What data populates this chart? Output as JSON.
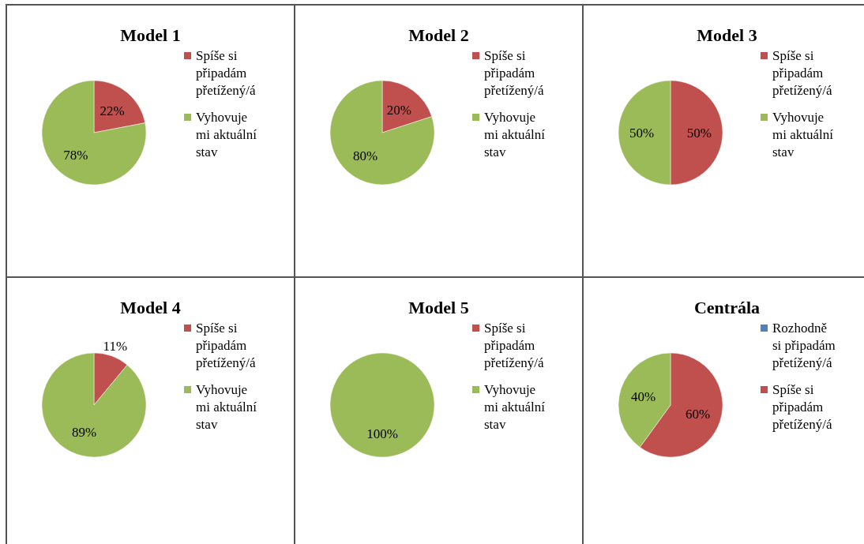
{
  "chart_data": [
    {
      "type": "pie",
      "title": "Model 1",
      "categories": [
        "Spíše si připadám přetížený/á",
        "Vyhovuje mi aktuální stav"
      ],
      "values": [
        22,
        78
      ],
      "colors": [
        "#c0504d",
        "#9bbb59"
      ],
      "value_labels": [
        "22%",
        "78%"
      ],
      "legend": "right"
    },
    {
      "type": "pie",
      "title": "Model 2",
      "categories": [
        "Spíše si připadám přetížený/á",
        "Vyhovuje mi aktuální stav"
      ],
      "values": [
        20,
        80
      ],
      "colors": [
        "#c0504d",
        "#9bbb59"
      ],
      "value_labels": [
        "20%",
        "80%"
      ],
      "legend": "right"
    },
    {
      "type": "pie",
      "title": "Model 3",
      "categories": [
        "Spíše si připadám přetížený/á",
        "Vyhovuje mi aktuální stav"
      ],
      "values": [
        50,
        50
      ],
      "colors": [
        "#c0504d",
        "#9bbb59"
      ],
      "value_labels": [
        "50%",
        "50%"
      ],
      "legend": "right"
    },
    {
      "type": "pie",
      "title": "Model 4",
      "categories": [
        "Spíše si připadám přetížený/á",
        "Vyhovuje mi aktuální stav"
      ],
      "values": [
        11,
        89
      ],
      "colors": [
        "#c0504d",
        "#9bbb59"
      ],
      "value_labels": [
        "11%",
        "89%"
      ],
      "legend": "right"
    },
    {
      "type": "pie",
      "title": "Model 5",
      "categories": [
        "Spíše si připadám přetížený/á",
        "Vyhovuje mi aktuální stav"
      ],
      "values": [
        0,
        100
      ],
      "colors": [
        "#c0504d",
        "#9bbb59"
      ],
      "value_labels": [
        null,
        "100%"
      ],
      "legend": "right"
    },
    {
      "type": "pie",
      "title": "Centrála",
      "categories": [
        "Rozhodně si připadám přetížený/á",
        "Spíše si připadám přetížený/á",
        null
      ],
      "values": [
        0,
        60,
        40
      ],
      "colors": [
        "#4f81bd",
        "#c0504d",
        "#9bbb59"
      ],
      "value_labels": [
        null,
        "60%",
        "40%"
      ],
      "legend": "right"
    }
  ]
}
